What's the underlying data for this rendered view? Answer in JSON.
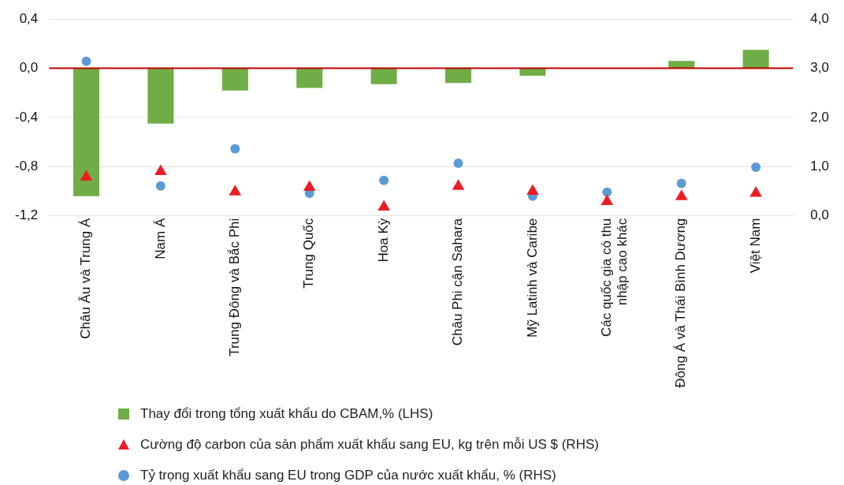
{
  "chart_data": {
    "type": "bar",
    "categories": [
      "Châu Âu và Trung Á",
      "Nam Á",
      "Trung Đông và Bắc Phi",
      "Trung Quốc",
      "Hoa Kỳ",
      "Châu Phi cận Sahara",
      "Mỹ Latinh và Caribe",
      "Các quốc gia có thu nhập cao khác",
      "Đông Á và Thái Bình Dương",
      "Việt Nam"
    ],
    "series": [
      {
        "name": "Thay đổi trong tổng xuất khẩu do CBAM,% (LHS)",
        "color": "#70ad47",
        "values": [
          -1.04,
          -0.45,
          -0.18,
          -0.16,
          -0.13,
          -0.12,
          -0.06,
          0,
          0.06,
          0.15
        ]
      },
      {
        "name": "Cường độ carbon của sản phẩm xuất khẩu sang EU, kg trên mỗi US $ (RHS)",
        "type": "scatter",
        "axis": "y2",
        "marker": "triangle",
        "color": "#ed1c24",
        "values": [
          0.79,
          0.9,
          0.49,
          0.58,
          0.18,
          0.6,
          0.5,
          0.29,
          0.39,
          0.46
        ]
      },
      {
        "name": "Tỷ trọng xuất khẩu sang EU trong GDP của nước xuất khẩu, % (RHS)",
        "type": "scatter",
        "axis": "y2",
        "marker": "circle",
        "color": "#5b9bd5",
        "values": [
          3.14,
          0.61,
          1.36,
          0.46,
          0.72,
          1.07,
          0.4,
          0.48,
          0.66,
          0.99
        ]
      }
    ],
    "ylim": [
      -1.2,
      0.4
    ],
    "yticks": [
      {
        "value": -1.2,
        "label": "-1,2"
      },
      {
        "value": -0.8,
        "label": "-0,8"
      },
      {
        "value": -0.4,
        "label": "-0,4"
      },
      {
        "value": 0,
        "label": "0,0"
      },
      {
        "value": 0.4,
        "label": "0,4"
      }
    ],
    "y2lim": [
      0,
      4
    ],
    "y2ticks": [
      {
        "value": 0,
        "label": "0,0"
      },
      {
        "value": 1,
        "label": "1,0"
      },
      {
        "value": 2,
        "label": "2,0"
      },
      {
        "value": 3,
        "label": "3,0"
      },
      {
        "value": 4,
        "label": "4,0"
      }
    ],
    "ref_lines": [
      {
        "axis": "y",
        "value": 0,
        "color": "#c00000"
      }
    ],
    "grid": "y",
    "legend": "bottom"
  }
}
